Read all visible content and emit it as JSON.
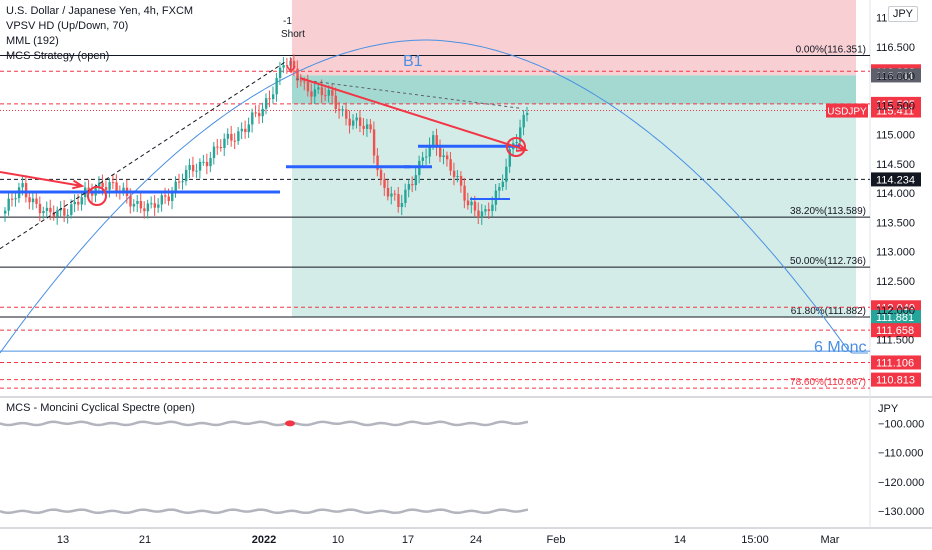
{
  "legend": {
    "symbol_line": "U.S. Dollar / Japanese Yen, 4h, FXCM",
    "indicators": [
      "VPSV HD (Up/Down, 70)",
      "MML (192)",
      "MCS Strategy (open)"
    ]
  },
  "currency_badge": "JPY",
  "lower_pane": {
    "title": "MCS - Moncini Cyclical Spectre (open)",
    "currency": "JPY",
    "y_ticks": [
      -100000,
      -110000,
      -120000,
      -130000
    ],
    "y_tick_labels": [
      "−100.000",
      "−110.000",
      "−120.000",
      "−130.000"
    ],
    "ylim": [
      -133000,
      -92000
    ],
    "top_band_level": -100000,
    "bottom_band_level": -130000
  },
  "x_axis": {
    "labels": [
      "13",
      "21",
      "2022",
      "10",
      "17",
      "24",
      "Feb",
      "14",
      "15:00",
      "Mar"
    ],
    "bold": [
      false,
      false,
      true,
      false,
      false,
      false,
      false,
      false,
      false,
      false
    ]
  },
  "annotations": {
    "cycle_label": "B1",
    "period_label": "6 Monc",
    "short_label": "Short",
    "short_label2": "-1",
    "symbol_tag": "USDJPY"
  },
  "price_tags": [
    {
      "value": "116.082",
      "price": 116.082,
      "color": "#f23645"
    },
    {
      "value": "116.011",
      "price": 116.011,
      "color": "#5d606b"
    },
    {
      "value": "115.525",
      "price": 115.525,
      "color": "#f23645"
    },
    {
      "value": "115.411",
      "price": 115.411,
      "color": "#f23645"
    },
    {
      "value": "114.234",
      "price": 114.234,
      "color": "#131722"
    },
    {
      "value": "112.049",
      "price": 112.049,
      "color": "#f23645"
    },
    {
      "value": "111.881",
      "price": 111.881,
      "color": "#26a69a"
    },
    {
      "value": "111.658",
      "price": 111.658,
      "color": "#f23645"
    },
    {
      "value": "111.106",
      "price": 111.106,
      "color": "#f23645"
    },
    {
      "value": "110.813",
      "price": 110.813,
      "color": "#f23645"
    }
  ],
  "colors": {
    "up": "#26a69a",
    "down": "#ef5350",
    "fib_line": "#131722",
    "red_dash": "#f23645",
    "blue_level": "#2962ff",
    "cycle": "#4a90e2",
    "arrow": "#f23645",
    "stop_zone": "#f8d0d3",
    "target_zone": "#d3ece8",
    "target_zone_dark": "#a3d9d1"
  },
  "chart_data": {
    "type": "candlestick",
    "symbol": "USD/JPY",
    "timeframe": "4h",
    "ylim": [
      110.55,
      117.3
    ],
    "y_ticks": [
      111.5,
      112.0,
      112.5,
      113.0,
      113.5,
      114.0,
      114.5,
      115.0,
      115.5,
      116.0,
      116.5,
      117.0
    ],
    "y_tick_labels": [
      "111.500",
      "112.000",
      "112.500",
      "113.000",
      "113.500",
      "114.000",
      "114.500",
      "115.000",
      "115.500",
      "116.000",
      "116.500",
      "117.000"
    ],
    "fib_levels": [
      {
        "label": "0.00%(116.351)",
        "price": 116.351
      },
      {
        "label": "38.20%(113.589)",
        "price": 113.589
      },
      {
        "label": "50.00%(112.736)",
        "price": 112.736
      },
      {
        "label": "61.80%(111.882)",
        "price": 111.882
      },
      {
        "label": "78.60%(110.667)",
        "price": 110.667
      }
    ],
    "position": {
      "side": "short",
      "entry": 116.011,
      "stop": 117.3,
      "target": 111.882
    },
    "candle_anchors": [
      {
        "bar": 0,
        "price": 113.7
      },
      {
        "bar": 5,
        "price": 114.1
      },
      {
        "bar": 12,
        "price": 113.6
      },
      {
        "bar": 20,
        "price": 113.8
      },
      {
        "bar": 28,
        "price": 114.2
      },
      {
        "bar": 36,
        "price": 113.9
      },
      {
        "bar": 42,
        "price": 113.7
      },
      {
        "bar": 50,
        "price": 114.2
      },
      {
        "bar": 58,
        "price": 114.6
      },
      {
        "bar": 66,
        "price": 115.0
      },
      {
        "bar": 74,
        "price": 115.4
      },
      {
        "bar": 80,
        "price": 116.25
      },
      {
        "bar": 86,
        "price": 115.85
      },
      {
        "bar": 94,
        "price": 115.6
      },
      {
        "bar": 100,
        "price": 115.2
      },
      {
        "bar": 105,
        "price": 115.05
      },
      {
        "bar": 108,
        "price": 114.2
      },
      {
        "bar": 113,
        "price": 113.75
      },
      {
        "bar": 118,
        "price": 114.4
      },
      {
        "bar": 123,
        "price": 114.85
      },
      {
        "bar": 128,
        "price": 114.5
      },
      {
        "bar": 133,
        "price": 113.75
      },
      {
        "bar": 138,
        "price": 113.7
      },
      {
        "bar": 142,
        "price": 114.0
      },
      {
        "bar": 146,
        "price": 114.9
      },
      {
        "bar": 150,
        "price": 115.4
      }
    ]
  }
}
